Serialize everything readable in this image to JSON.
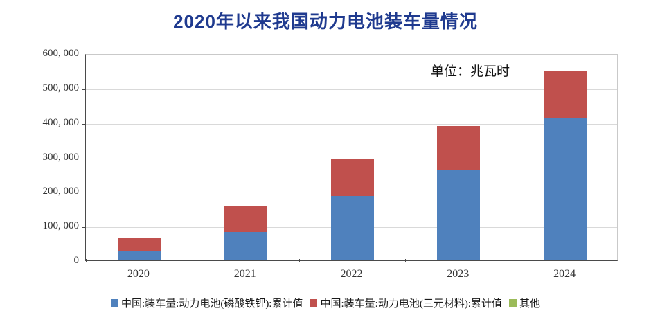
{
  "title": "2020年以来我国动力电池装车量情况",
  "title_color": "#1f3a8f",
  "unit_label": "单位：兆瓦时",
  "colors": {
    "lfp_blue": "#4f81bd",
    "ternary_red": "#c0504d",
    "other_green": "#9bbb59",
    "gridline": "#d9d9d9",
    "axis": "#4a4a4a"
  },
  "chart_data": {
    "type": "bar",
    "stacked": true,
    "title": "2020年以来我国动力电池装车量情况",
    "unit": "兆瓦时",
    "categories": [
      "2020",
      "2021",
      "2022",
      "2023",
      "2024"
    ],
    "series": [
      {
        "name": "中国:装车量:动力电池(磷酸铁锂):累计值",
        "color": "#4f81bd",
        "values": [
          24000,
          80000,
          184000,
          260000,
          410000
        ]
      },
      {
        "name": "中国:装车量:动力电池(三元材料):累计值",
        "color": "#c0504d",
        "values": [
          39000,
          75000,
          110000,
          128000,
          138000
        ]
      },
      {
        "name": "其他",
        "color": "#9bbb59",
        "values": [
          0,
          0,
          0,
          0,
          0
        ]
      }
    ],
    "ylim": [
      0,
      600000
    ],
    "ytick_interval": 100000,
    "ytick_labels": [
      "0",
      "100, 000",
      "200, 000",
      "300, 000",
      "400, 000",
      "500, 000",
      "600, 000"
    ],
    "xlabel": "",
    "ylabel": "",
    "grid": true,
    "legend_position": "bottom"
  }
}
